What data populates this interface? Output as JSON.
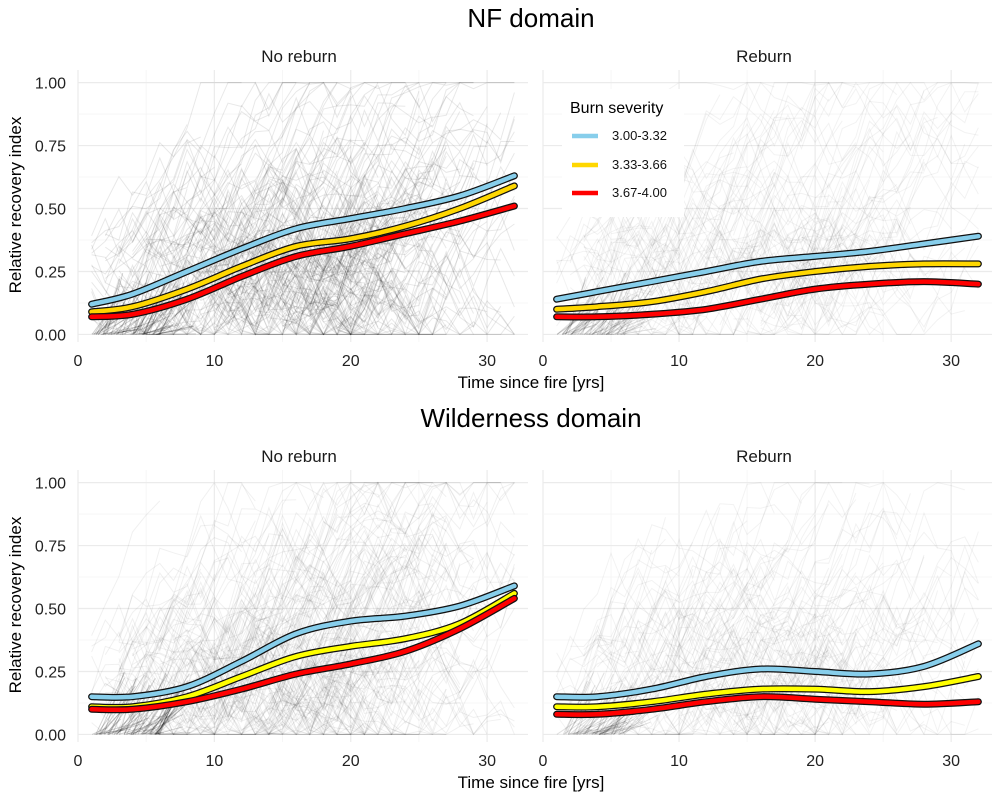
{
  "chart_data": [
    {
      "type": "line",
      "title": "NF domain",
      "xlabel": "Time since fire [yrs]",
      "ylabel": "Relative recovery index",
      "xlim": [
        0,
        33
      ],
      "ylim": [
        0,
        1.05
      ],
      "xticks": [
        0,
        10,
        20,
        30
      ],
      "yticks": [
        "0.00",
        "0.25",
        "0.50",
        "0.75",
        "1.00"
      ],
      "grid": true,
      "legend": {
        "title": "Burn severity",
        "placement": "top-left of Reburn panel"
      },
      "background": "dense grey individual recovery trajectories (low opacity) behind the smooth lines",
      "panels": [
        {
          "name": "No reburn",
          "x": [
            1,
            4,
            8,
            12,
            16,
            20,
            24,
            28,
            32
          ],
          "series": [
            {
              "name": "3.00-3.32",
              "color": "#87ceeb",
              "values": [
                0.12,
                0.16,
                0.25,
                0.34,
                0.42,
                0.46,
                0.5,
                0.55,
                0.63
              ]
            },
            {
              "name": "3.33-3.66",
              "color": "#ffd700",
              "values": [
                0.09,
                0.11,
                0.18,
                0.27,
                0.35,
                0.38,
                0.43,
                0.5,
                0.59
              ]
            },
            {
              "name": "3.67-4.00",
              "color": "#ff0000",
              "values": [
                0.07,
                0.08,
                0.14,
                0.23,
                0.31,
                0.35,
                0.4,
                0.45,
                0.51
              ]
            }
          ]
        },
        {
          "name": "Reburn",
          "x": [
            1,
            4,
            8,
            12,
            16,
            20,
            24,
            28,
            32
          ],
          "series": [
            {
              "name": "3.00-3.32",
              "color": "#87ceeb",
              "values": [
                0.14,
                0.17,
                0.21,
                0.25,
                0.29,
                0.31,
                0.33,
                0.36,
                0.39
              ]
            },
            {
              "name": "3.33-3.66",
              "color": "#ffd700",
              "values": [
                0.1,
                0.11,
                0.13,
                0.17,
                0.22,
                0.25,
                0.27,
                0.28,
                0.28
              ]
            },
            {
              "name": "3.67-4.00",
              "color": "#ff0000",
              "values": [
                0.07,
                0.07,
                0.08,
                0.1,
                0.14,
                0.18,
                0.2,
                0.21,
                0.2
              ]
            }
          ]
        }
      ]
    },
    {
      "type": "line",
      "title": "Wilderness domain",
      "xlabel": "Time since fire [yrs]",
      "ylabel": "Relative recovery index",
      "xlim": [
        0,
        33
      ],
      "ylim": [
        0,
        1.05
      ],
      "xticks": [
        0,
        10,
        20,
        30
      ],
      "yticks": [
        "0.00",
        "0.25",
        "0.50",
        "0.75",
        "1.00"
      ],
      "grid": true,
      "background": "dense grey individual recovery trajectories (low opacity) behind the smooth lines",
      "panels": [
        {
          "name": "No reburn",
          "x": [
            1,
            4,
            8,
            12,
            16,
            20,
            24,
            28,
            32
          ],
          "series": [
            {
              "name": "3.00-3.32",
              "color": "#87ceeb",
              "values": [
                0.15,
                0.15,
                0.19,
                0.29,
                0.4,
                0.45,
                0.47,
                0.51,
                0.59
              ]
            },
            {
              "name": "3.33-3.66",
              "color": "#ffff00",
              "values": [
                0.11,
                0.11,
                0.15,
                0.23,
                0.31,
                0.35,
                0.38,
                0.44,
                0.56
              ]
            },
            {
              "name": "3.67-4.00",
              "color": "#ff0000",
              "values": [
                0.1,
                0.1,
                0.13,
                0.18,
                0.24,
                0.28,
                0.33,
                0.42,
                0.54
              ]
            }
          ]
        },
        {
          "name": "Reburn",
          "x": [
            1,
            4,
            8,
            12,
            16,
            20,
            24,
            28,
            32
          ],
          "series": [
            {
              "name": "3.00-3.32",
              "color": "#87ceeb",
              "values": [
                0.15,
                0.15,
                0.18,
                0.23,
                0.26,
                0.25,
                0.24,
                0.27,
                0.36
              ]
            },
            {
              "name": "3.33-3.66",
              "color": "#ffff00",
              "values": [
                0.11,
                0.11,
                0.13,
                0.16,
                0.18,
                0.18,
                0.17,
                0.19,
                0.23
              ]
            },
            {
              "name": "3.67-4.00",
              "color": "#ff0000",
              "values": [
                0.08,
                0.08,
                0.1,
                0.13,
                0.15,
                0.14,
                0.13,
                0.12,
                0.13
              ]
            }
          ]
        }
      ]
    }
  ]
}
